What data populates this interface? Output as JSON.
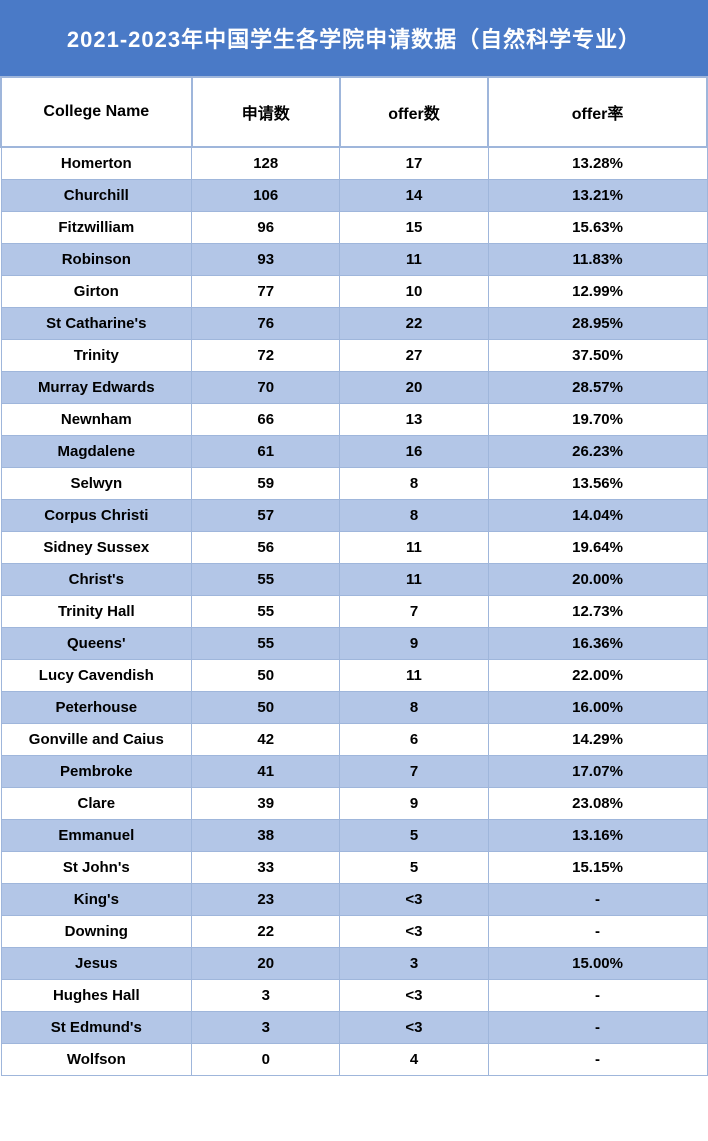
{
  "title": "2021-2023年中国学生各学院申请数据（自然科学专业）",
  "style": {
    "title_bg": "#4a7ac7",
    "title_color": "#ffffff",
    "title_fontsize": 22,
    "header_bg": "#ffffff",
    "header_fontsize": 16,
    "row_even_bg": "#b3c6e7",
    "row_odd_bg": "#ffffff",
    "border_color": "#9fb6db",
    "cell_fontsize": 15,
    "cell_fontweight": "bold",
    "col_widths_pct": [
      27,
      21,
      21,
      31
    ]
  },
  "columns": [
    "College Name",
    "申请数",
    "offer数",
    "offer率"
  ],
  "rows": [
    [
      "Homerton",
      "128",
      "17",
      "13.28%"
    ],
    [
      "Churchill",
      "106",
      "14",
      "13.21%"
    ],
    [
      "Fitzwilliam",
      "96",
      "15",
      "15.63%"
    ],
    [
      "Robinson",
      "93",
      "11",
      "11.83%"
    ],
    [
      "Girton",
      "77",
      "10",
      "12.99%"
    ],
    [
      "St Catharine's",
      "76",
      "22",
      "28.95%"
    ],
    [
      "Trinity",
      "72",
      "27",
      "37.50%"
    ],
    [
      "Murray Edwards",
      "70",
      "20",
      "28.57%"
    ],
    [
      "Newnham",
      "66",
      "13",
      "19.70%"
    ],
    [
      "Magdalene",
      "61",
      "16",
      "26.23%"
    ],
    [
      "Selwyn",
      "59",
      "8",
      "13.56%"
    ],
    [
      "Corpus Christi",
      "57",
      "8",
      "14.04%"
    ],
    [
      "Sidney Sussex",
      "56",
      "11",
      "19.64%"
    ],
    [
      "Christ's",
      "55",
      "11",
      "20.00%"
    ],
    [
      "Trinity Hall",
      "55",
      "7",
      "12.73%"
    ],
    [
      "Queens'",
      "55",
      "9",
      "16.36%"
    ],
    [
      "Lucy Cavendish",
      "50",
      "11",
      "22.00%"
    ],
    [
      "Peterhouse",
      "50",
      "8",
      "16.00%"
    ],
    [
      "Gonville and Caius",
      "42",
      "6",
      "14.29%"
    ],
    [
      "Pembroke",
      "41",
      "7",
      "17.07%"
    ],
    [
      "Clare",
      "39",
      "9",
      "23.08%"
    ],
    [
      "Emmanuel",
      "38",
      "5",
      "13.16%"
    ],
    [
      "St John's",
      "33",
      "5",
      "15.15%"
    ],
    [
      "King's",
      "23",
      "<3",
      "-"
    ],
    [
      "Downing",
      "22",
      "<3",
      "-"
    ],
    [
      "Jesus",
      "20",
      "3",
      "15.00%"
    ],
    [
      "Hughes Hall",
      "3",
      "<3",
      "-"
    ],
    [
      "St Edmund's",
      "3",
      "<3",
      "-"
    ],
    [
      "Wolfson",
      "0",
      "4",
      "-"
    ]
  ]
}
